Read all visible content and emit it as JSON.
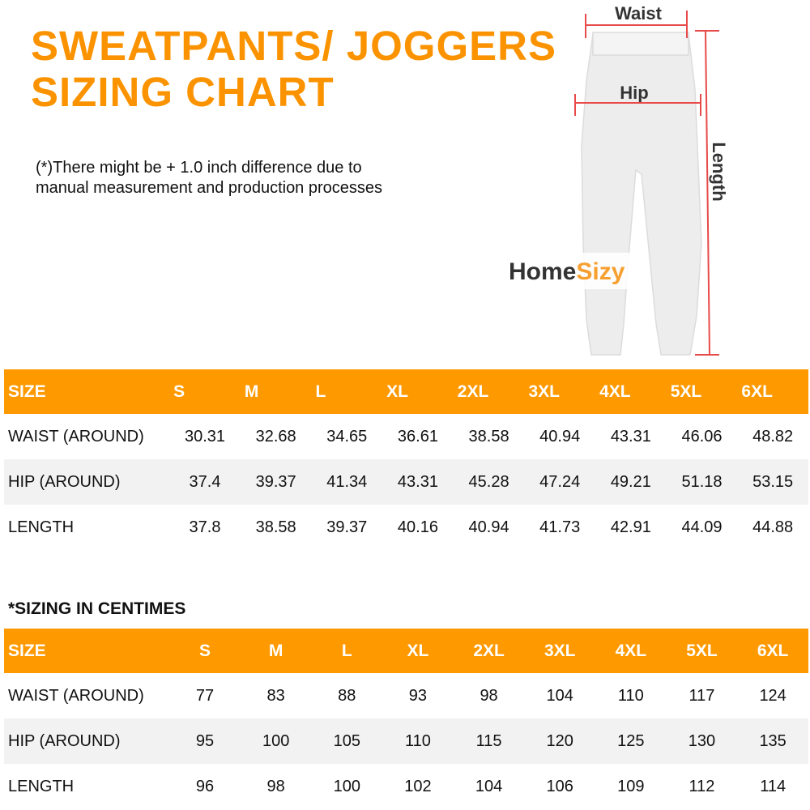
{
  "title_line1": "SWEATPANTS/ JOGGERS",
  "title_line2": "SIZING CHART",
  "note_line1": "(*)There might be + 1.0 inch difference due to",
  "note_line2": "manual measurement and production processes",
  "figure": {
    "waist": "Waist",
    "hip": "Hip",
    "length": "Length",
    "logo_home": "HomeSizy",
    "measure_line_color": "#E84A4A"
  },
  "colors": {
    "accent": "#FF9900",
    "title": "#FB9300"
  },
  "inch_table": {
    "headers": [
      "SIZE",
      "S",
      "M",
      "L",
      "XL",
      "2XL",
      "3XL",
      "4XL",
      "5XL",
      "6XL"
    ],
    "rows": [
      [
        "WAIST (AROUND)",
        "30.31",
        "32.68",
        "34.65",
        "36.61",
        "38.58",
        "40.94",
        "43.31",
        "46.06",
        "48.82"
      ],
      [
        "HIP (AROUND)",
        "37.4",
        "39.37",
        "41.34",
        "43.31",
        "45.28",
        "47.24",
        "49.21",
        "51.18",
        "53.15"
      ],
      [
        "LENGTH",
        "37.8",
        "38.58",
        "39.37",
        "40.16",
        "40.94",
        "41.73",
        "42.91",
        "44.09",
        "44.88"
      ]
    ]
  },
  "cm_section_title": "*SIZING IN CENTIMES",
  "cm_table": {
    "headers": [
      "SIZE",
      "S",
      "M",
      "L",
      "XL",
      "2XL",
      "3XL",
      "4XL",
      "5XL",
      "6XL"
    ],
    "rows": [
      [
        "WAIST (AROUND)",
        "77",
        "83",
        "88",
        "93",
        "98",
        "104",
        "110",
        "117",
        "124"
      ],
      [
        "HIP (AROUND)",
        "95",
        "100",
        "105",
        "110",
        "115",
        "120",
        "125",
        "130",
        "135"
      ],
      [
        "LENGTH",
        "96",
        "98",
        "100",
        "102",
        "104",
        "106",
        "109",
        "112",
        "114"
      ]
    ]
  }
}
